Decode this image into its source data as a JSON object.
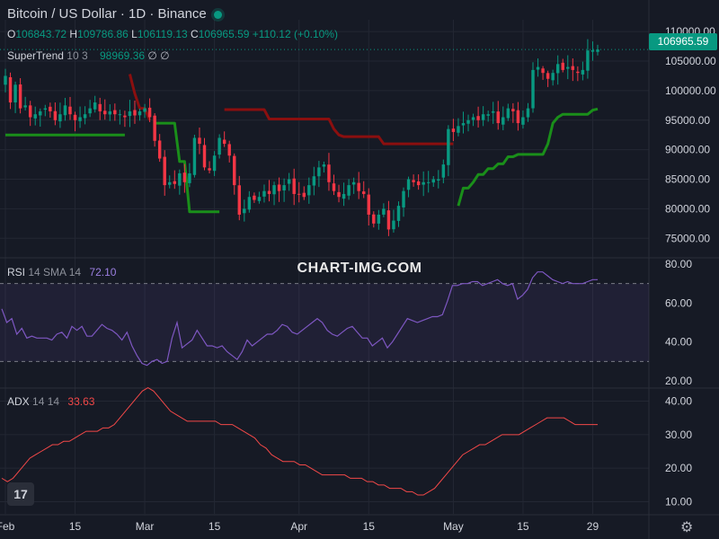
{
  "header": {
    "title": "Bitcoin / US Dollar · 1D · Binance",
    "open_label": "O",
    "open": "106843.72",
    "high_label": "H",
    "high": "109786.86",
    "low_label": "L",
    "low": "106119.13",
    "close_label": "C",
    "close": "106965.59",
    "change": "+110.12 (+0.10%)"
  },
  "watermark": "CHART-IMG.COM",
  "logo_text": "17",
  "colors": {
    "background": "#161a25",
    "up": "#089981",
    "down": "#f23645",
    "supertrend_up": "#1a8f1a",
    "supertrend_down": "#8b0f0f",
    "rsi": "#7e57c2",
    "adx": "#f24848"
  },
  "chart_data": [
    {
      "type": "candlestick",
      "symbol": "Bitcoin / US Dollar",
      "interval": "1D",
      "exchange": "Binance",
      "last_price": "106965.59",
      "indicator": {
        "name": "SuperTrend",
        "params": "10 3",
        "value": "98969.36",
        "extra": "∅ ∅"
      },
      "ylim": [
        72000,
        112000
      ],
      "y_ticks": [
        "110000.00",
        "105000.00",
        "100000.00",
        "95000.00",
        "90000.00",
        "85000.00",
        "80000.00",
        "75000.00"
      ],
      "x_ticks": [
        "Feb",
        "15",
        "Mar",
        "15",
        "Apr",
        "15",
        "May",
        "15",
        "29"
      ],
      "closes": [
        102500,
        98000,
        101000,
        97000,
        97500,
        95500,
        96000,
        96500,
        97000,
        96500,
        95000,
        96000,
        97500,
        96000,
        95000,
        95500,
        96000,
        97000,
        98000,
        96500,
        96000,
        96500,
        96000,
        96000,
        95500,
        96500,
        95800,
        96500,
        97000,
        95500,
        91500,
        88500,
        84000,
        84500,
        84200,
        86000,
        84500,
        86000,
        92000,
        91000,
        87000,
        86500,
        89000,
        92000,
        91000,
        89000,
        84000,
        79000,
        80000,
        82000,
        81500,
        82000,
        83000,
        82500,
        84000,
        83000,
        84000,
        85000,
        82500,
        82500,
        82000,
        84000,
        85500,
        87000,
        87500,
        84500,
        83000,
        82000,
        82500,
        84000,
        84500,
        83000,
        82500,
        79000,
        77500,
        79000,
        80000,
        76500,
        78000,
        80500,
        83000,
        85000,
        84500,
        84000,
        84500,
        84500,
        85000,
        85000,
        87500,
        93500,
        93000,
        94000,
        94500,
        95000,
        95500,
        95000,
        96000,
        96000,
        96500,
        94500,
        95500,
        97000,
        96500,
        94500,
        95500,
        97000,
        103500,
        104000,
        103000,
        102000,
        103000,
        104500,
        103500,
        104000,
        103500,
        103000,
        103500,
        106800,
        106850,
        106966
      ],
      "supertrend": [
        92500,
        92500,
        92500,
        92500,
        92500,
        92500,
        92500,
        92500,
        92500,
        92500,
        92500,
        92500,
        92500,
        92500,
        92500,
        92500,
        92500,
        92500,
        92500,
        92500,
        92500,
        92500,
        92500,
        92500,
        92500,
        102800,
        99500,
        97000,
        97000,
        95000,
        94500,
        94500,
        94500,
        94500,
        94500,
        88000,
        88000,
        79500,
        79500,
        79500,
        79500,
        79500,
        79500,
        79500,
        96800,
        96800,
        96800,
        96800,
        96800,
        96800,
        96800,
        96800,
        96800,
        95200,
        95200,
        95200,
        95200,
        95200,
        95200,
        95200,
        95200,
        95200,
        95200,
        95200,
        95200,
        95200,
        93500,
        92500,
        92200,
        92200,
        92200,
        92200,
        92200,
        92200,
        92200,
        92200,
        91000,
        91000,
        91000,
        91000,
        91000,
        91000,
        91000,
        91000,
        91000,
        91000,
        91000,
        91000,
        91000,
        91000,
        91000,
        80500,
        83500,
        83500,
        84500,
        85800,
        85800,
        86800,
        86800,
        87600,
        87600,
        88800,
        88800,
        89200,
        89200,
        89200,
        89200,
        89200,
        89200,
        91000,
        94500,
        95500,
        96000,
        96000,
        96000,
        96000,
        96000,
        96000,
        96700,
        96900,
        97500,
        99000
      ],
      "supertrend_direction": [
        "up",
        "up",
        "up",
        "up",
        "up",
        "up",
        "up",
        "up",
        "up",
        "up",
        "up",
        "up",
        "up",
        "up",
        "up",
        "up",
        "up",
        "up",
        "up",
        "up",
        "up",
        "up",
        "up",
        "up",
        "up",
        "down",
        "down",
        "down",
        "down",
        "down",
        "up",
        "up",
        "up",
        "up",
        "up",
        "up",
        "up",
        "up",
        "up",
        "up",
        "up",
        "up",
        "up",
        "up",
        "down",
        "down",
        "down",
        "down",
        "down",
        "down",
        "down",
        "down",
        "down",
        "down",
        "down",
        "down",
        "down",
        "down",
        "down",
        "down",
        "down",
        "down",
        "down",
        "down",
        "down",
        "down",
        "down",
        "down",
        "down",
        "down",
        "down",
        "down",
        "down",
        "down",
        "down",
        "down",
        "down",
        "down",
        "down",
        "down",
        "down",
        "down",
        "down",
        "down",
        "down",
        "down",
        "down",
        "down",
        "down",
        "down",
        "down",
        "up",
        "up",
        "up",
        "up",
        "up",
        "up",
        "up",
        "up",
        "up",
        "up",
        "up",
        "up",
        "up",
        "up",
        "up",
        "up",
        "up",
        "up",
        "up",
        "up",
        "up",
        "up",
        "up",
        "up",
        "up",
        "up",
        "up",
        "up",
        "up",
        "up",
        "up"
      ]
    },
    {
      "type": "line",
      "indicator": {
        "name": "RSI",
        "params": "14 SMA 14",
        "value": "72.10"
      },
      "ylim": [
        20,
        80
      ],
      "y_ticks": [
        "80.00",
        "60.00",
        "40.00",
        "20.00"
      ],
      "bands": [
        30,
        70
      ],
      "values": [
        57,
        50,
        52,
        44,
        47,
        42,
        43,
        42,
        42,
        42,
        41,
        44,
        45,
        42,
        48,
        46,
        48,
        43,
        43,
        46,
        49,
        47,
        46,
        44,
        41,
        45,
        38,
        33,
        29,
        28,
        30,
        31,
        29,
        30,
        42,
        50,
        37,
        39,
        41,
        46,
        42,
        38,
        38,
        37,
        38,
        35,
        33,
        31,
        35,
        41,
        38,
        40,
        42,
        44,
        44,
        46,
        49,
        48,
        45,
        44,
        46,
        48,
        50,
        52,
        50,
        46,
        44,
        43,
        45,
        47,
        48,
        45,
        42,
        42,
        38,
        40,
        42,
        37,
        40,
        44,
        48,
        52,
        51,
        50,
        51,
        52,
        53,
        53,
        54,
        61,
        69,
        69,
        70,
        70,
        71,
        71,
        69,
        70,
        71,
        72,
        70,
        69,
        70,
        62,
        64,
        67,
        73,
        76,
        76,
        74,
        72,
        71,
        70,
        71,
        70,
        70,
        70,
        71,
        72,
        72
      ],
      "ma_values": [
        51,
        51,
        50,
        50,
        49,
        48,
        48,
        47,
        46,
        46,
        46,
        45,
        45,
        45,
        45,
        45,
        44,
        44,
        44,
        44,
        45,
        45,
        45,
        45,
        45,
        45,
        44,
        43,
        42,
        41,
        40,
        39,
        38,
        37,
        37,
        37,
        37,
        37,
        37,
        37,
        38,
        38,
        38,
        38,
        38,
        39,
        39,
        39,
        39,
        39,
        39,
        39,
        40,
        40,
        41,
        41,
        42,
        42,
        43,
        43,
        44,
        44,
        45,
        45,
        46,
        46,
        46,
        46,
        46,
        46,
        46,
        46,
        46,
        46,
        45,
        45,
        45,
        44,
        44,
        44,
        44,
        45,
        45,
        46,
        46,
        47,
        48,
        48,
        49,
        50,
        51,
        52,
        53,
        55,
        56,
        58,
        59,
        61,
        62,
        63,
        64,
        65,
        66,
        67,
        67,
        68,
        68,
        69,
        69,
        70,
        70,
        70,
        70,
        71,
        71,
        71,
        71,
        71,
        71,
        71
      ]
    },
    {
      "type": "line",
      "indicator": {
        "name": "ADX",
        "params": "14 14",
        "value": "33.63"
      },
      "ylim": [
        8,
        42
      ],
      "y_ticks": [
        "40.00",
        "30.00",
        "20.00",
        "10.00"
      ],
      "values": [
        17,
        16,
        17,
        19,
        21,
        23,
        24,
        25,
        26,
        27,
        27,
        28,
        28,
        29,
        30,
        31,
        31,
        31,
        32,
        32,
        33,
        35,
        37,
        39,
        41,
        43,
        44,
        43,
        41,
        39,
        37,
        36,
        35,
        34,
        34,
        34,
        34,
        34,
        34,
        33,
        33,
        33,
        32,
        31,
        30,
        29,
        27,
        26,
        24,
        23,
        22,
        22,
        22,
        21,
        21,
        20,
        19,
        18,
        18,
        18,
        18,
        18,
        17,
        17,
        17,
        16,
        16,
        15,
        15,
        14,
        14,
        14,
        13,
        13,
        12,
        12,
        13,
        14,
        16,
        18,
        20,
        22,
        24,
        25,
        26,
        27,
        27,
        28,
        29,
        30,
        30,
        30,
        30,
        31,
        32,
        33,
        34,
        35,
        35,
        35,
        35,
        34,
        33,
        33,
        33,
        33,
        33
      ]
    }
  ]
}
